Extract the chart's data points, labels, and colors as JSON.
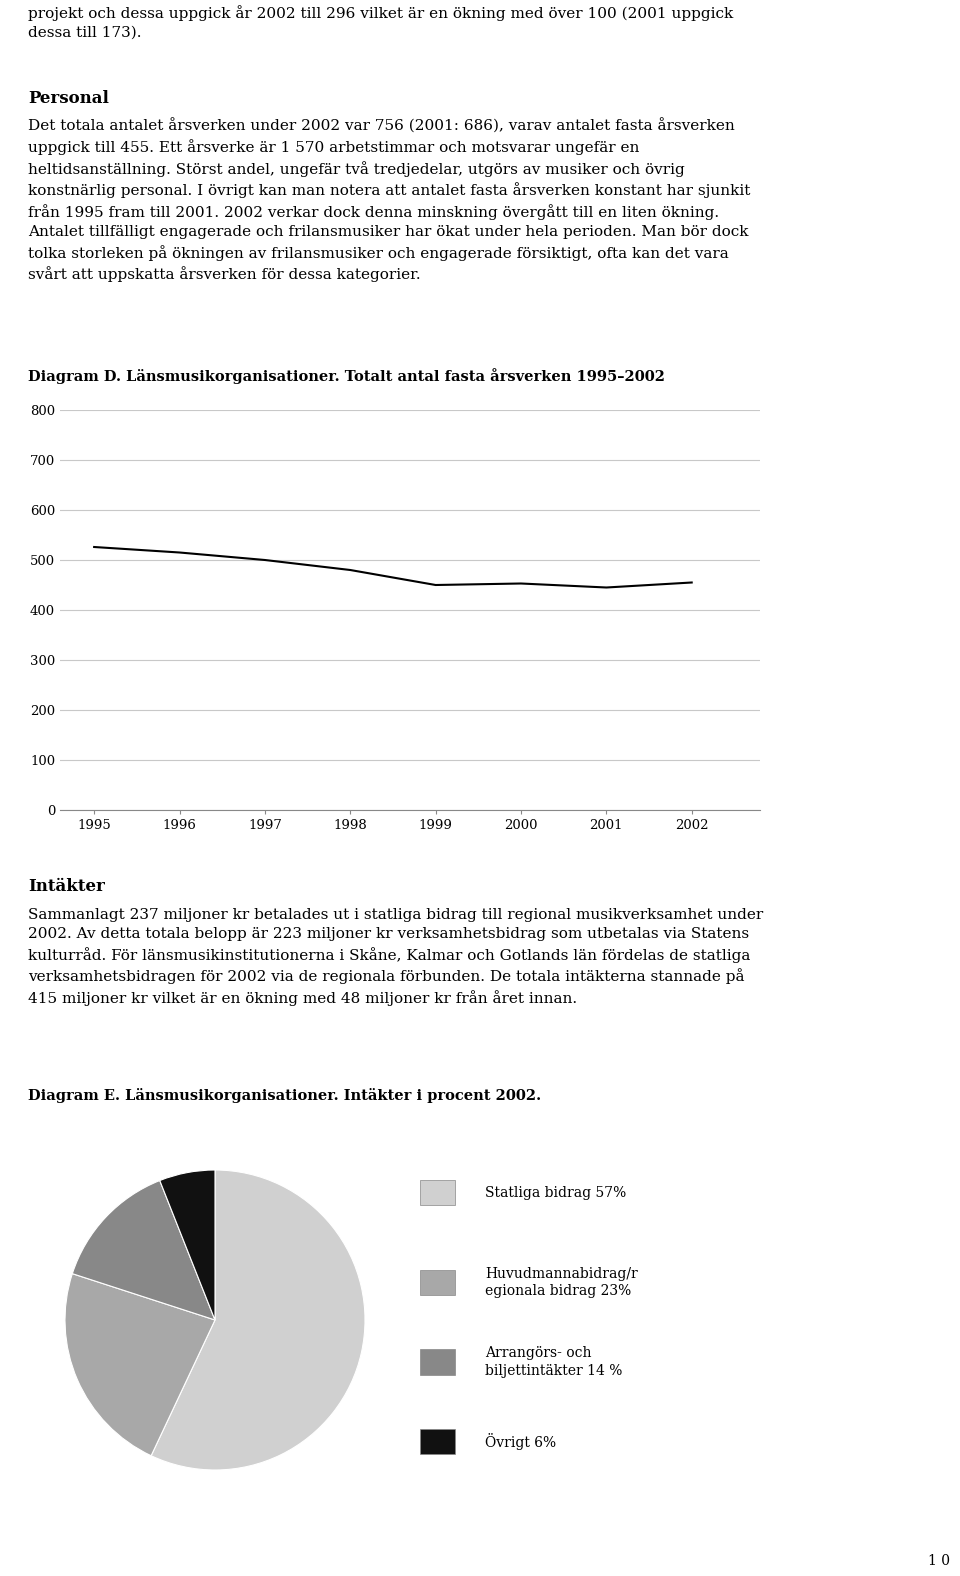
{
  "page_text_top": [
    "projekt och dessa uppgick år 2002 till 296 vilket är en ökning med över 100 (2001 uppgick",
    "dessa till 173)."
  ],
  "personal_heading": "Personal",
  "personal_text": "Det totala antalet årsverken under 2002 var 756 (2001: 686), varav antalet fasta årsverken\nuppgick till 455. Ett årsverke är 1 570 arbetstimmar och motsvarar ungefär en\nheltidsanställning. Störst andel, ungefär två tredjedelar, utgörs av musiker och övrig\nkonstnärlig personal. I övrigt kan man notera att antalet fasta årsverken konstant har sjunkit\nfrån 1995 fram till 2001. 2002 verkar dock denna minskning övergått till en liten ökning.\nAntalet tillfälligt engagerade och frilansmusiker har ökat under hela perioden. Man bör dock\ntolka storleken på ökningen av frilansmusiker och engagerade försiktigt, ofta kan det vara\nsvårt att uppskatta årsverken för dessa kategorier.",
  "diagram_d_label": "Diagram D. Länsmusikorganisationer. Totalt antal fasta årsverken 1995–2002",
  "line_years": [
    1995,
    1996,
    1997,
    1998,
    1999,
    2000,
    2001,
    2002
  ],
  "line_values": [
    526,
    515,
    500,
    480,
    450,
    453,
    445,
    455
  ],
  "line_ylim": [
    0,
    800
  ],
  "line_yticks": [
    0,
    100,
    200,
    300,
    400,
    500,
    600,
    700,
    800
  ],
  "line_color": "#000000",
  "line_width": 1.5,
  "grid_color": "#c8c8c8",
  "intakter_heading": "Intäkter",
  "intakter_text": "Sammanlagt 237 miljoner kr betalades ut i statliga bidrag till regional musikverksamhet under\n2002. Av detta totala belopp är 223 miljoner kr verksamhetsbidrag som utbetalas via Statens\nkulturråd. För länsmusikinstitutionerna i Skåne, Kalmar och Gotlands län fördelas de statliga\nverksamhetsbidragen för 2002 via de regionala förbunden. De totala intäkterna stannade på\n415 miljoner kr vilket är en ökning med 48 miljoner kr från året innan.",
  "diagram_e_label": "Diagram E. Länsmusikorganisationer. Intäkter i procent 2002.",
  "pie_values": [
    57,
    23,
    14,
    6
  ],
  "pie_colors": [
    "#d0d0d0",
    "#a8a8a8",
    "#888888",
    "#111111"
  ],
  "pie_labels": [
    "Statliga bidrag 57%",
    "Huvudmannabidrag/r\negionala bidrag 23%",
    "Arrangörs- och\nbiljettintäkter 14 %",
    "Övrigt 6%"
  ],
  "pie_startangle": 90,
  "page_number": "1 0",
  "bg_color": "#ffffff",
  "text_color": "#000000",
  "font_size_body": 11.0,
  "font_size_heading": 12.0,
  "font_size_diagram_label": 10.5,
  "font_size_axis": 9.5,
  "font_size_legend": 10.0,
  "font_size_page": 10
}
